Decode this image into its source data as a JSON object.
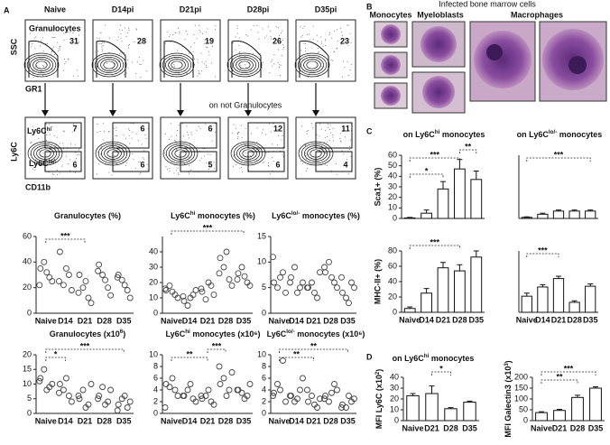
{
  "panel_a": {
    "label": "A",
    "flow": {
      "columns": [
        "Naive",
        "D14pi",
        "D21pi",
        "D28pi",
        "D35pi"
      ],
      "gate_name": "Granulocytes",
      "granulocytes_pct": [
        31,
        28,
        19,
        26,
        23
      ],
      "top_y_axis": "SSC",
      "top_x_axis": "GR1",
      "gate_note": "on not Granulocytes",
      "bottom_y_axis": "Ly6C",
      "bottom_x_axis": "CD11b",
      "hi_gate": {
        "text": "Ly6C",
        "sup": "hi"
      },
      "lo_gate": {
        "text": "Ly6C",
        "sup": "lo/-"
      },
      "hi_pct": [
        7,
        6,
        6,
        12,
        11
      ],
      "lo_pct": [
        6,
        6,
        5,
        6,
        4
      ]
    },
    "charts": [
      {
        "type": "scatter",
        "title": {
          "text": "Granulocytes (%)"
        },
        "categories": [
          "Naive",
          "D14",
          "D21",
          "D28",
          "D35"
        ],
        "ylim": [
          0,
          60
        ],
        "yticks": [
          0,
          20,
          40,
          60
        ],
        "values": [
          [
            35,
            28,
            40,
            25,
            32,
            22
          ],
          [
            48,
            30,
            22,
            18,
            35,
            25
          ],
          [
            30,
            12,
            20,
            8,
            25,
            16
          ],
          [
            38,
            20,
            30,
            14,
            26,
            33
          ],
          [
            30,
            18,
            26,
            12,
            22,
            28
          ]
        ],
        "annotations": [
          "***"
        ]
      },
      {
        "type": "scatter",
        "title": {
          "text": "Ly6C",
          "sup": "hi",
          "tail": " monocytes (%)"
        },
        "categories": [
          "Naive",
          "D14",
          "D21",
          "D28",
          "D35"
        ],
        "ylim": [
          0,
          50
        ],
        "yticks": [
          0,
          10,
          20,
          30,
          40
        ],
        "values": [
          [
            15,
            12,
            18,
            10,
            14,
            16
          ],
          [
            8,
            12,
            5,
            15,
            10,
            11
          ],
          [
            14,
            18,
            9,
            12,
            20,
            16
          ],
          [
            36,
            22,
            30,
            18,
            40,
            26
          ],
          [
            26,
            20,
            30,
            18,
            24,
            22
          ]
        ],
        "annotations": [
          "***"
        ]
      },
      {
        "type": "scatter",
        "title": {
          "text": "Ly6C",
          "sup": "lo/-",
          "tail": " monocytes (%)"
        },
        "categories": [
          "Naive",
          "D14",
          "D21",
          "D28",
          "D35"
        ],
        "ylim": [
          0,
          15
        ],
        "yticks": [
          0,
          5,
          10,
          15
        ],
        "values": [
          [
            6,
            8,
            5,
            4,
            7,
            11
          ],
          [
            7,
            5,
            9,
            6,
            4,
            6
          ],
          [
            5,
            3,
            6,
            8,
            4,
            5
          ],
          [
            8,
            6,
            10,
            5,
            7,
            9
          ],
          [
            4,
            6,
            3,
            5,
            2,
            7
          ]
        ],
        "annotations": []
      },
      {
        "type": "scatter",
        "title": {
          "text": "Granulocytes (x10",
          "sup": "6",
          "tail": ")"
        },
        "categories": [
          "Naive",
          "D14",
          "D21",
          "D28",
          "D35"
        ],
        "ylim": [
          0,
          20
        ],
        "yticks": [
          0,
          5,
          10,
          15,
          20
        ],
        "values": [
          [
            12,
            9,
            15,
            10,
            8,
            11
          ],
          [
            10,
            6,
            8,
            4,
            12,
            7
          ],
          [
            5,
            3,
            8,
            10,
            2,
            6
          ],
          [
            6,
            4,
            9,
            8,
            3,
            5
          ],
          [
            3,
            2,
            5,
            4,
            6,
            1
          ]
        ],
        "annotations": [
          "*",
          "***"
        ]
      },
      {
        "type": "scatter",
        "title": {
          "text": "Ly6C",
          "sup": "hi",
          "tail": " monocytes (x10⁶)"
        },
        "categories": [
          "Naive",
          "D14",
          "D21",
          "D28",
          "D35"
        ],
        "ylim": [
          0,
          10
        ],
        "yticks": [
          0,
          2,
          4,
          6,
          8,
          10
        ],
        "values": [
          [
            5,
            4,
            4.5,
            3,
            6,
            1
          ],
          [
            3,
            2.5,
            4,
            2,
            5,
            3
          ],
          [
            2.5,
            2,
            3,
            1.5,
            4,
            3
          ],
          [
            5,
            4,
            6,
            7,
            3,
            8
          ],
          [
            4,
            3,
            3.5,
            5,
            2.5,
            4
          ]
        ],
        "annotations": [
          "**",
          "***"
        ]
      },
      {
        "type": "scatter",
        "title": {
          "text": "Ly6C",
          "sup": "lo/-",
          "tail": " monocytes (x10⁶)"
        },
        "categories": [
          "Naive",
          "D14",
          "D21",
          "D28",
          "D35"
        ],
        "ylim": [
          0,
          10
        ],
        "yticks": [
          0,
          2,
          4,
          6,
          8,
          10
        ],
        "values": [
          [
            3.5,
            9,
            5,
            2,
            4,
            3
          ],
          [
            3,
            4,
            2,
            6,
            2.5,
            3
          ],
          [
            2,
            1,
            3,
            2.5,
            1.5,
            4
          ],
          [
            3,
            5,
            2,
            4,
            3.5,
            2.5
          ],
          [
            1.5,
            2,
            1,
            2.5,
            3,
            1
          ]
        ],
        "annotations": [
          "**",
          "**"
        ]
      }
    ]
  },
  "panel_b": {
    "label": "B",
    "title": "Infected bone marrow cells",
    "labels": [
      "Monocytes",
      "Myeloblasts",
      "Macrophages"
    ]
  },
  "panel_c": {
    "label": "C",
    "titles": [
      {
        "text": "on Ly6C",
        "sup": "hi",
        "tail": " monocytes"
      },
      {
        "text": "on Ly6C",
        "sup": "lo/-",
        "tail": " monocytes"
      }
    ],
    "charts": [
      {
        "type": "bar",
        "y_label": "Sca1+ (%)",
        "ylim": [
          0,
          60
        ],
        "yticks": [
          0,
          10,
          20,
          30,
          40,
          50,
          60
        ],
        "values": [
          0.5,
          5,
          28,
          47,
          37
        ],
        "errors": [
          0.5,
          3,
          7,
          9,
          8
        ],
        "annotations": [
          "*",
          "***",
          "**"
        ]
      },
      {
        "type": "bar",
        "ylim": [
          0,
          60
        ],
        "values": [
          1,
          4,
          7,
          7,
          7
        ],
        "errors": [
          0.5,
          1,
          1,
          1,
          1
        ],
        "annotations": [
          "***"
        ]
      },
      {
        "type": "bar",
        "y_label": "MHC-II+ (%)",
        "categories": [
          "Naive",
          "D14",
          "D21",
          "D28",
          "D35"
        ],
        "ylim": [
          0,
          80
        ],
        "yticks": [
          0,
          20,
          40,
          60,
          80
        ],
        "values": [
          5,
          25,
          58,
          54,
          72
        ],
        "errors": [
          2,
          6,
          7,
          8,
          8
        ],
        "annotations": [
          "***"
        ]
      },
      {
        "type": "bar",
        "categories": [
          "Naive",
          "D14",
          "D21",
          "D28",
          "D35"
        ],
        "ylim": [
          0,
          80
        ],
        "values": [
          21,
          33,
          44,
          13,
          34
        ],
        "errors": [
          4,
          3,
          3,
          2,
          3
        ],
        "annotations": [
          "***"
        ]
      }
    ]
  },
  "panel_d": {
    "label": "D",
    "title": {
      "text": "on Ly6C",
      "sup": "hi",
      "tail": " monocytes"
    },
    "charts": [
      {
        "type": "bar",
        "y_label": {
          "text": "MFI Ly6C (x10",
          "sup": "2",
          "tail": ")"
        },
        "categories": [
          "Naive",
          "D21",
          "D28",
          "D35"
        ],
        "ylim": [
          0,
          40
        ],
        "yticks": [
          0,
          10,
          20,
          30,
          40
        ],
        "values": [
          23,
          25,
          11,
          17
        ],
        "errors": [
          2,
          7,
          1,
          1
        ],
        "annotations": [
          "*"
        ]
      },
      {
        "type": "bar",
        "y_label": {
          "text": "MFI Galectin3 (x10",
          "sup": "3",
          "tail": ")"
        },
        "categories": [
          "Naive",
          "D21",
          "D28",
          "D35"
        ],
        "ylim": [
          0,
          200
        ],
        "yticks": [
          0,
          50,
          100,
          150,
          200
        ],
        "values": [
          37,
          47,
          107,
          150
        ],
        "errors": [
          4,
          5,
          10,
          6
        ],
        "annotations": [
          "**",
          "***"
        ]
      }
    ]
  }
}
